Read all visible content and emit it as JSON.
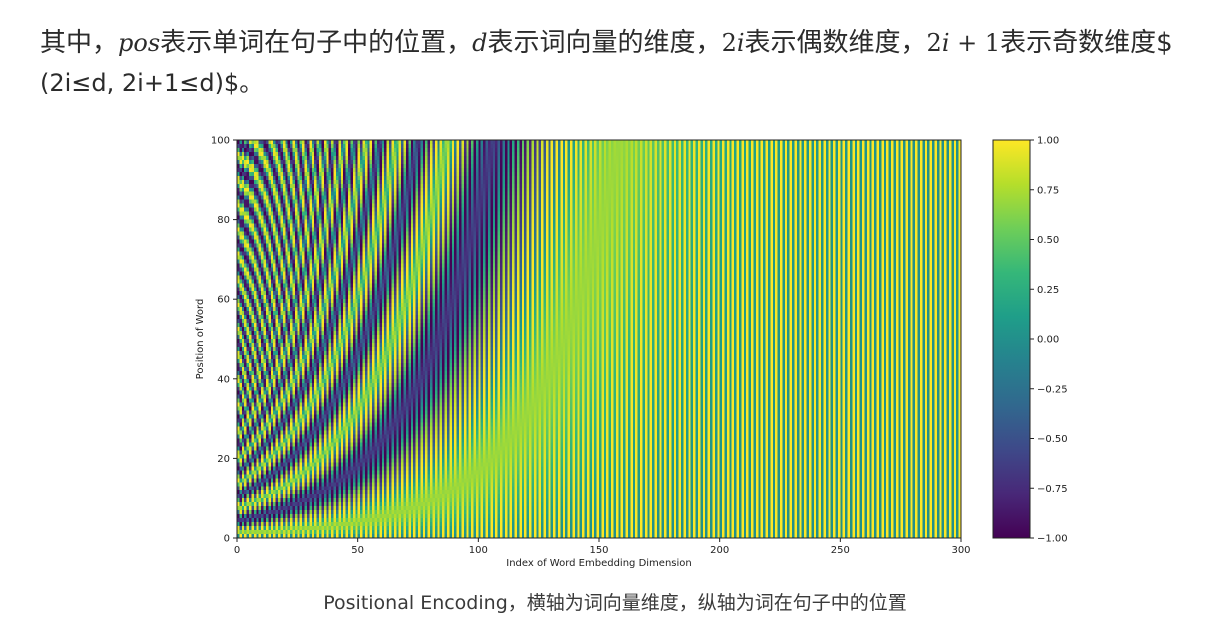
{
  "paragraph": {
    "t1": "其中，",
    "m_pos": "pos",
    "t2": "表示单词在句子中的位置，",
    "m_d": "d",
    "t3": "表示词向量的维度，",
    "m_2i": "2",
    "m_2i_i": "i",
    "t4": "表示偶数维度，",
    "m_2i1_a": "2",
    "m_2i1_i": "i",
    "m_2i1_b": " + 1",
    "t5": "表示奇数维度$",
    "line2": "(2i≤d, 2i+1≤d)$。"
  },
  "caption": "Positional Encoding，横轴为词向量维度，纵轴为词在句子中的位置",
  "colors": {
    "viridis": [
      "#440154",
      "#482878",
      "#3e4989",
      "#31688e",
      "#26828e",
      "#1f9e89",
      "#35b779",
      "#6ece58",
      "#b5de2b",
      "#fde725"
    ]
  },
  "chart_data": {
    "type": "heatmap",
    "title": "",
    "function": "even dims sin(pos/10000^(i/d)), odd dims cos(pos/10000^((i-1)/d))",
    "d_model": 300,
    "max_position": 100,
    "xlabel": "Index of Word Embedding Dimension",
    "ylabel": "Position of Word",
    "xlim": [
      0,
      300
    ],
    "ylim": [
      0,
      100
    ],
    "xticks": [
      0,
      50,
      100,
      150,
      200,
      250,
      300
    ],
    "yticks": [
      0,
      20,
      40,
      60,
      80,
      100
    ],
    "colormap": "viridis",
    "colorbar": {
      "range": [
        -1.0,
        1.0
      ],
      "ticks": [
        1.0,
        0.75,
        0.5,
        0.25,
        0.0,
        -0.25,
        -0.5,
        -0.75,
        -1.0
      ],
      "tick_labels": [
        "1.00",
        "0.75",
        "0.50",
        "0.25",
        "0.00",
        "−0.25",
        "−0.50",
        "−0.75",
        "−1.00"
      ]
    }
  }
}
